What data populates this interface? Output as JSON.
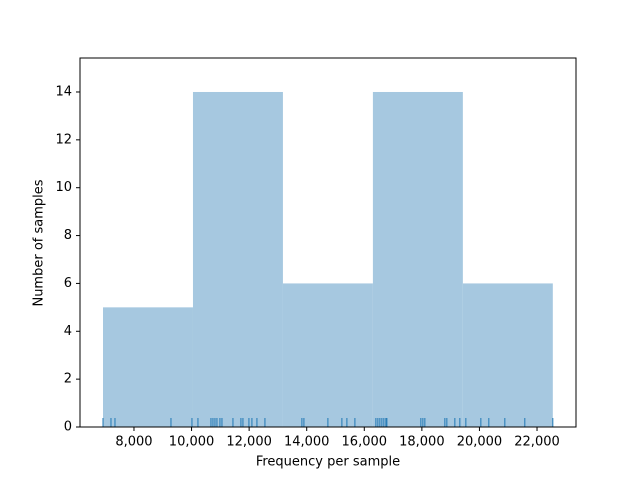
{
  "chart_data": {
    "type": "histogram",
    "xlabel": "Frequency per sample",
    "ylabel": "Number of samples",
    "bins": [
      6924,
      10049,
      13174,
      16299,
      19424,
      22549
    ],
    "counts": [
      5,
      14,
      6,
      14,
      6
    ],
    "color": "#a6c8e0",
    "rug": [
      6924,
      7201,
      7340,
      9285,
      10014,
      10222,
      10674,
      10743,
      10813,
      10882,
      10986,
      11056,
      11438,
      11715,
      11785,
      11993,
      12097,
      12271,
      12549,
      13833,
      13903,
      14736,
      15222,
      15396,
      15674,
      16403,
      16472,
      16541,
      16611,
      16680,
      16750,
      16785,
      17965,
      18035,
      18104,
      18799,
      18868,
      19146,
      19319,
      19528,
      20049,
      20326,
      20882,
      21576,
      22549
    ],
    "rug_color": "#1f77b4",
    "xlim": [
      6125,
      23354
    ],
    "ylim": [
      0,
      15.42
    ],
    "xticks": [
      {
        "value": 8000,
        "label": "8,000"
      },
      {
        "value": 10000,
        "label": "10,000"
      },
      {
        "value": 12000,
        "label": "12,000"
      },
      {
        "value": 14000,
        "label": "14,000"
      },
      {
        "value": 16000,
        "label": "16,000"
      },
      {
        "value": 18000,
        "label": "18,000"
      },
      {
        "value": 20000,
        "label": "20,000"
      },
      {
        "value": 22000,
        "label": "22,000"
      }
    ],
    "yticks": [
      0,
      2,
      4,
      6,
      8,
      10,
      12,
      14
    ]
  }
}
